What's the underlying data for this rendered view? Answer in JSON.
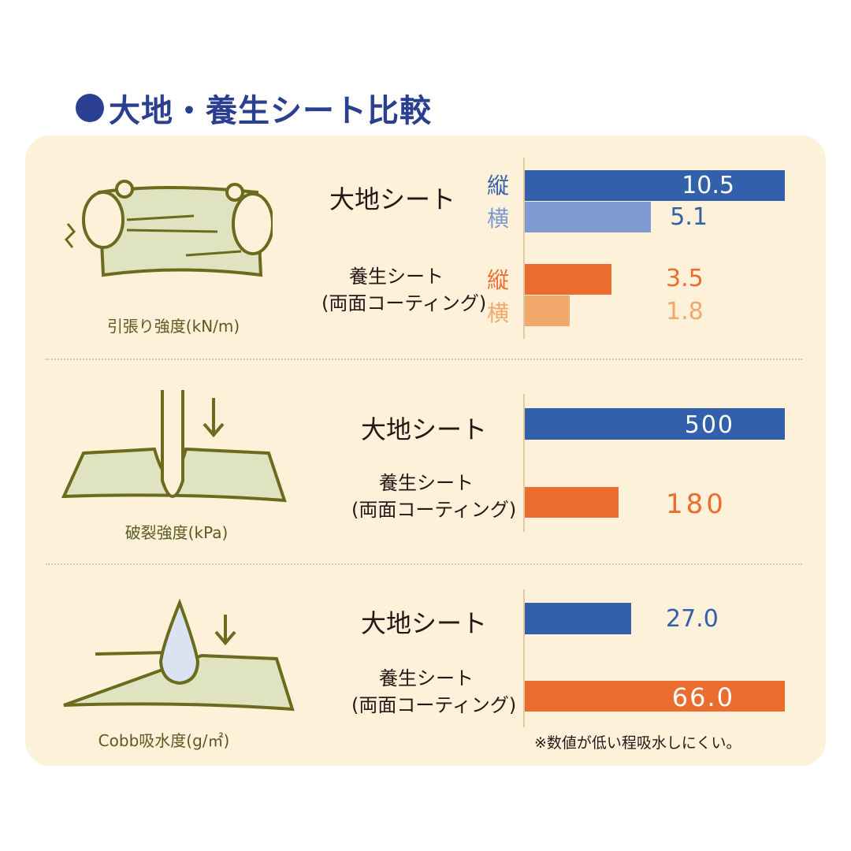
{
  "title": "大地・養生シート比較",
  "colors": {
    "blue": "#3360aa",
    "blue_light": "#7f9ad1",
    "orange": "#ea6c2f",
    "orange_light": "#f0a96a"
  },
  "note": "※数値が低い程吸水しにくい。",
  "chart_data": [
    {
      "type": "bar",
      "title": "引張り強度(kN/m)",
      "categories": [
        "大地シート",
        "養生シート(両面コーティング)"
      ],
      "series": [
        {
          "name": "縦",
          "values": [
            10.5,
            3.5
          ]
        },
        {
          "name": "横",
          "values": [
            5.1,
            1.8
          ]
        }
      ],
      "category_labels": [
        {
          "line1": "大地シート"
        },
        {
          "line1": "養生シート",
          "line2": "(両面コーティング)"
        }
      ],
      "value_labels": [
        [
          "10.5",
          "5.1"
        ],
        [
          "3.5",
          "1.8"
        ]
      ],
      "series_labels": [
        "縦",
        "横"
      ],
      "xlim": [
        0,
        10.5
      ]
    },
    {
      "type": "bar",
      "title": "破裂強度(kPa)",
      "categories": [
        "大地シート",
        "養生シート(両面コーティング)"
      ],
      "values": [
        500,
        180
      ],
      "category_labels": [
        {
          "line1": "大地シート"
        },
        {
          "line1": "養生シート",
          "line2": "(両面コーティング)"
        }
      ],
      "value_labels": [
        "500",
        "180"
      ],
      "xlim": [
        0,
        500
      ]
    },
    {
      "type": "bar",
      "title": "Cobb吸水度(g/㎡)",
      "categories": [
        "大地シート",
        "養生シート(両面コーティング)"
      ],
      "values": [
        27.0,
        66.0
      ],
      "category_labels": [
        {
          "line1": "大地シート"
        },
        {
          "line1": "養生シート",
          "line2": "(両面コーティング)"
        }
      ],
      "value_labels": [
        "27.0",
        "66.0"
      ],
      "xlim": [
        0,
        66.0
      ]
    }
  ]
}
